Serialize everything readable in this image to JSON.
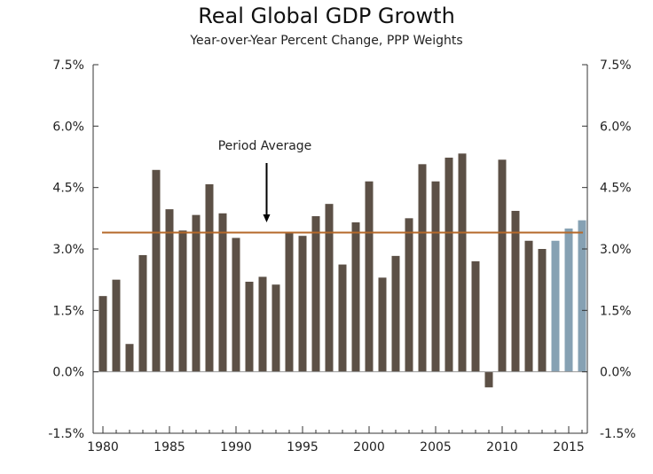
{
  "chart_data": {
    "type": "bar",
    "title": "Real Global GDP Growth",
    "subtitle": "Year-over-Year Percent Change, PPP Weights",
    "xlabel": "",
    "ylabel": "",
    "ylim": [
      -1.5,
      7.5
    ],
    "yticks": [
      "-1.5%",
      "0.0%",
      "1.5%",
      "3.0%",
      "4.5%",
      "6.0%",
      "7.5%"
    ],
    "ytick_values": [
      -1.5,
      0.0,
      1.5,
      3.0,
      4.5,
      6.0,
      7.5
    ],
    "xticks": [
      "1980",
      "1985",
      "1990",
      "1995",
      "2000",
      "2005",
      "2010",
      "2015"
    ],
    "grid": false,
    "series": [
      {
        "x": [
          1980,
          1981,
          1982,
          1983,
          1984,
          1985,
          1986,
          1987,
          1988,
          1989,
          1990,
          1991,
          1992,
          1993,
          1994,
          1995,
          1996,
          1997,
          1998,
          1999,
          2000,
          2001,
          2002,
          2003,
          2004,
          2005,
          2006,
          2007,
          2008,
          2009,
          2010,
          2011,
          2012,
          2013,
          2014,
          2015,
          2016
        ],
        "values": [
          1.85,
          2.25,
          0.68,
          2.85,
          4.93,
          3.97,
          3.45,
          3.83,
          4.58,
          3.87,
          3.27,
          2.2,
          2.32,
          2.13,
          3.42,
          3.32,
          3.8,
          4.1,
          2.62,
          3.65,
          4.65,
          2.3,
          2.83,
          3.75,
          5.07,
          4.65,
          5.23,
          5.33,
          2.7,
          -0.38,
          5.18,
          3.93,
          3.2,
          3.0,
          3.2,
          3.5,
          3.7
        ],
        "colors": [
          "#5c5046",
          "#5c5046",
          "#5c5046",
          "#5c5046",
          "#5c5046",
          "#5c5046",
          "#5c5046",
          "#5c5046",
          "#5c5046",
          "#5c5046",
          "#5c5046",
          "#5c5046",
          "#5c5046",
          "#5c5046",
          "#5c5046",
          "#5c5046",
          "#5c5046",
          "#5c5046",
          "#5c5046",
          "#5c5046",
          "#5c5046",
          "#5c5046",
          "#5c5046",
          "#5c5046",
          "#5c5046",
          "#5c5046",
          "#5c5046",
          "#5c5046",
          "#5c5046",
          "#5c5046",
          "#5c5046",
          "#5c5046",
          "#5c5046",
          "#5c5046",
          "#86a1b3",
          "#86a1b3",
          "#86a1b3"
        ]
      }
    ],
    "period_average": {
      "value": 3.4,
      "label": "Period Average",
      "color": "#b5692a"
    },
    "colors": {
      "actual": "#5c5046",
      "forecast": "#86a1b3",
      "axis": "#333333"
    }
  }
}
